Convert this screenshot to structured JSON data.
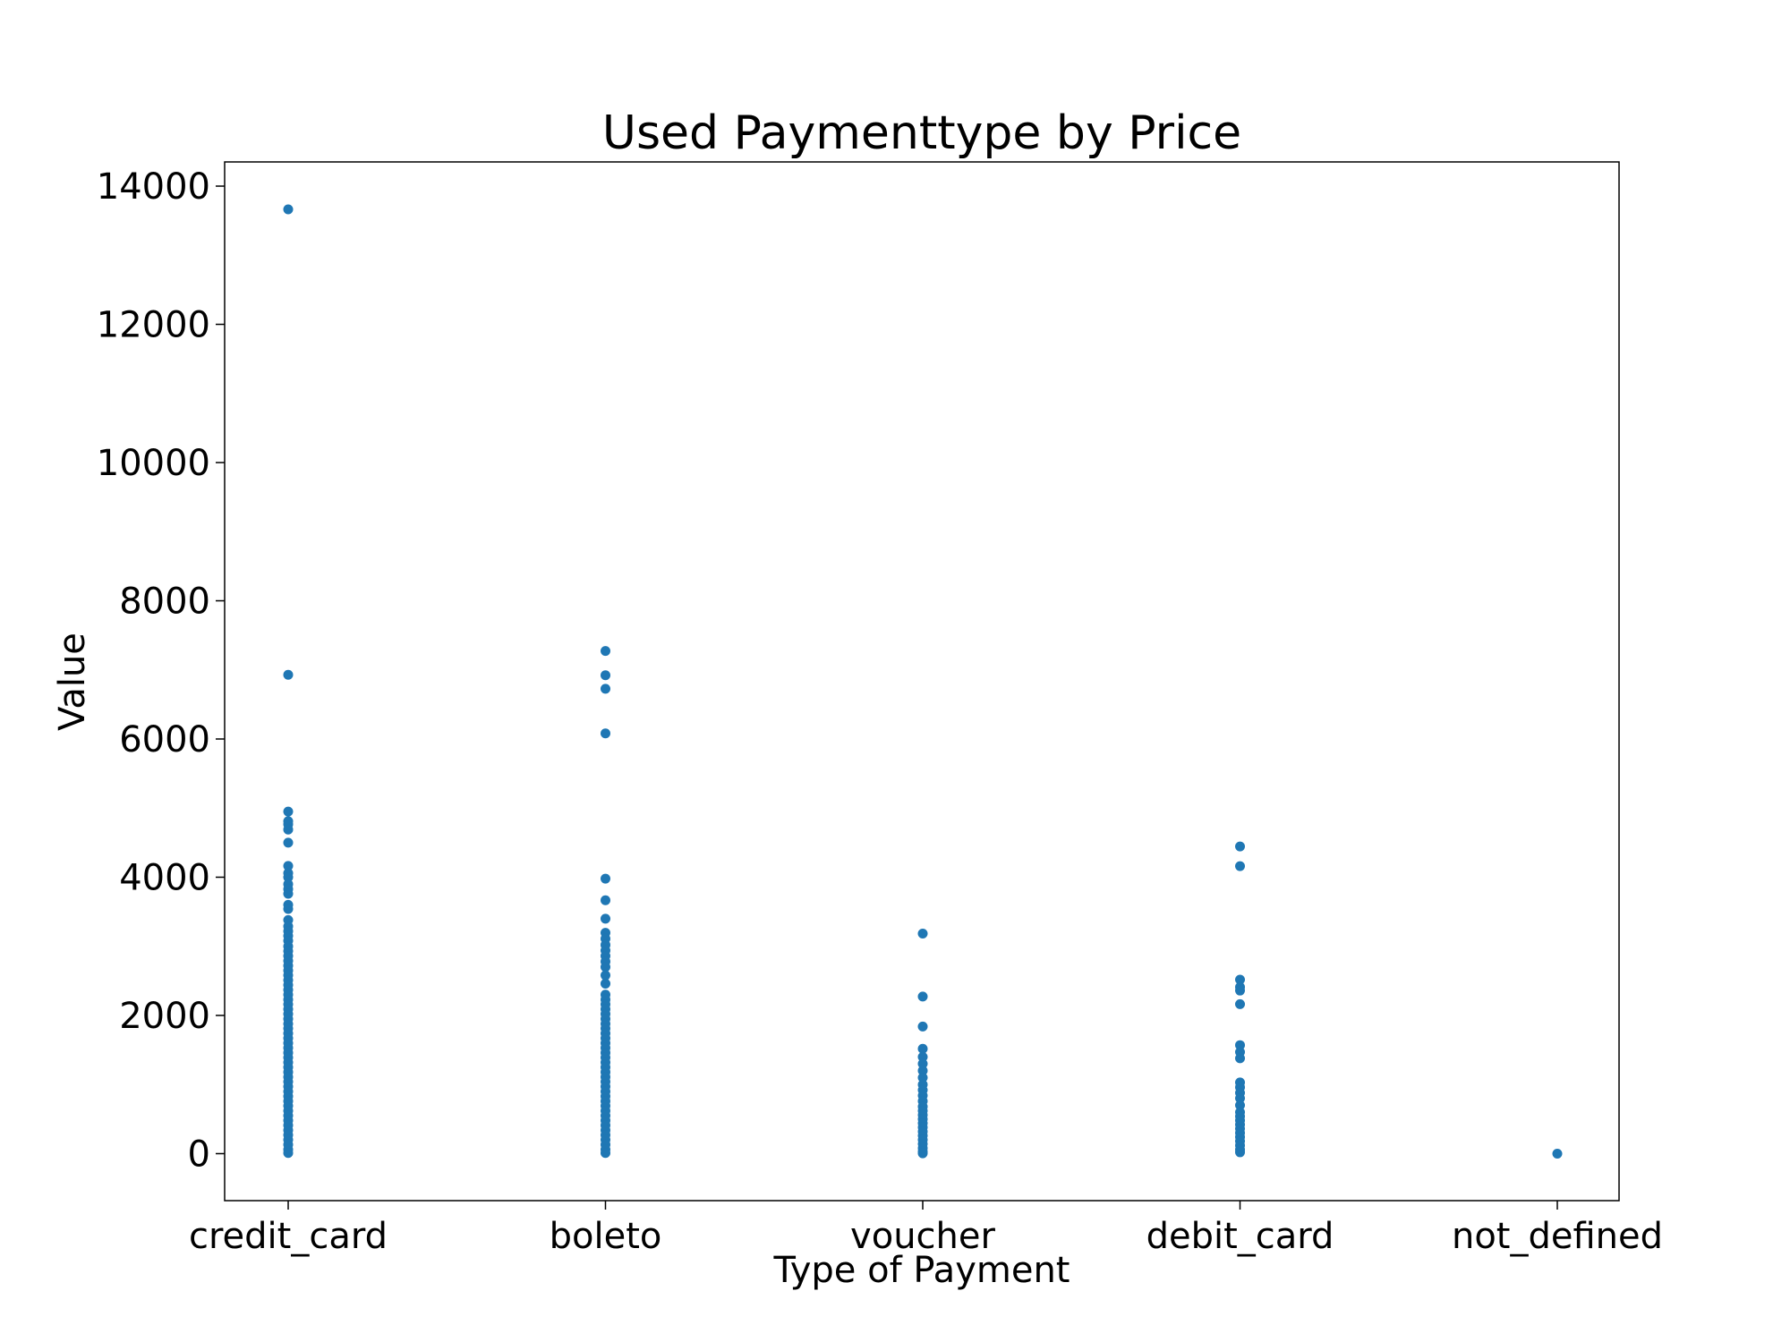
{
  "chart_data": {
    "type": "scatter",
    "title": "Used Paymenttype by Price",
    "xlabel": "Type of Payment",
    "ylabel": "Value",
    "categories": [
      "credit_card",
      "boleto",
      "voucher",
      "debit_card",
      "not_defined"
    ],
    "yticks": [
      "0",
      "2000",
      "4000",
      "6000",
      "8000",
      "10000",
      "12000",
      "14000"
    ],
    "ylim": [
      -680,
      14350
    ],
    "grid": false,
    "marker_color": "#1f77b4",
    "series": [
      {
        "category": "credit_card",
        "values": [
          13664,
          6929,
          4950,
          4810,
          4765,
          4690,
          4500,
          4163,
          4059,
          3999,
          3899,
          3828,
          3760,
          3600,
          3540,
          3380,
          3290,
          3220,
          3150,
          3080,
          3000,
          2930,
          2860,
          2790,
          2720,
          2650,
          2580,
          2510,
          2440,
          2370,
          2300,
          2230,
          2160,
          2090,
          2020,
          1950,
          1880,
          1810,
          1740,
          1670,
          1600,
          1530,
          1460,
          1390,
          1320,
          1250,
          1180,
          1110,
          1040,
          970,
          900,
          830,
          760,
          690,
          620,
          550,
          480,
          410,
          340,
          270,
          200,
          130,
          60,
          10
        ]
      },
      {
        "category": "boleto",
        "values": [
          7274,
          6922,
          6726,
          6081,
          3979,
          3666,
          3400,
          3195,
          3110,
          3020,
          2940,
          2860,
          2780,
          2700,
          2580,
          2460,
          2300,
          2230,
          2160,
          2090,
          2020,
          1950,
          1880,
          1810,
          1740,
          1670,
          1600,
          1530,
          1460,
          1390,
          1320,
          1250,
          1180,
          1110,
          1040,
          970,
          900,
          830,
          760,
          690,
          620,
          550,
          480,
          410,
          340,
          270,
          200,
          130,
          60,
          10
        ]
      },
      {
        "category": "voucher",
        "values": [
          3184,
          2273,
          1839,
          1518,
          1400,
          1300,
          1200,
          1100,
          1000,
          920,
          840,
          760,
          680,
          620,
          560,
          500,
          440,
          380,
          320,
          260,
          200,
          140,
          80,
          30,
          5
        ]
      },
      {
        "category": "debit_card",
        "values": [
          4445,
          4160,
          2517,
          2410,
          2360,
          2163,
          1570,
          1470,
          1380,
          1030,
          960,
          880,
          800,
          700,
          600,
          540,
          480,
          420,
          360,
          300,
          240,
          180,
          120,
          60,
          20
        ]
      },
      {
        "category": "not_defined",
        "values": [
          0
        ]
      }
    ]
  }
}
